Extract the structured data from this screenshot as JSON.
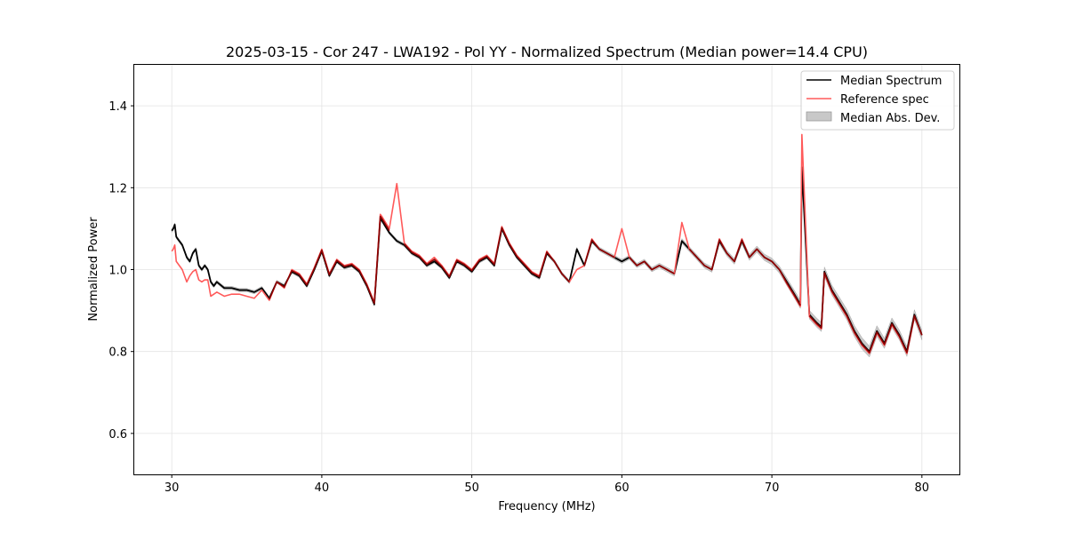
{
  "chart_data": {
    "type": "line",
    "title": "2025-03-15 - Cor 247 - LWA192 - Pol YY - Normalized Spectrum (Median power=14.4 CPU)",
    "xlabel": "Frequency (MHz)",
    "ylabel": "Normalized Power",
    "xlim": [
      27.5,
      82.5
    ],
    "ylim": [
      0.5,
      1.5
    ],
    "xticks": [
      30,
      40,
      50,
      60,
      70,
      80
    ],
    "yticks": [
      0.6,
      0.8,
      1.0,
      1.2,
      1.4
    ],
    "xtick_labels": [
      "30",
      "40",
      "50",
      "60",
      "70",
      "80"
    ],
    "ytick_labels": [
      "0.6",
      "0.8",
      "1.0",
      "1.2",
      "1.4"
    ],
    "grid": true,
    "legend_position": "top-right",
    "legend": [
      "Median Spectrum",
      "Reference spec",
      "Median Abs. Dev."
    ],
    "colors": {
      "median": "#000000",
      "reference": "#ff5a5a",
      "overlap": "#8b0000",
      "mad": "#c8c8c8"
    },
    "series": [
      {
        "name": "Median Spectrum",
        "x": [
          30.0,
          30.1,
          30.2,
          30.3,
          30.5,
          30.7,
          30.9,
          31.0,
          31.2,
          31.4,
          31.6,
          31.8,
          32.0,
          32.2,
          32.4,
          32.6,
          32.8,
          33.0,
          33.5,
          34.0,
          34.5,
          35.0,
          35.5,
          36.0,
          36.5,
          37.0,
          37.5,
          38.0,
          38.5,
          39.0,
          39.5,
          40.0,
          40.5,
          41.0,
          41.5,
          42.0,
          42.5,
          43.0,
          43.5,
          43.9,
          44.0,
          44.5,
          45.0,
          45.5,
          46.0,
          46.5,
          47.0,
          47.5,
          48.0,
          48.5,
          49.0,
          49.5,
          50.0,
          50.5,
          51.0,
          51.5,
          52.0,
          52.5,
          53.0,
          53.5,
          54.0,
          54.5,
          55.0,
          55.5,
          56.0,
          56.5,
          57.0,
          57.5,
          58.0,
          58.5,
          59.0,
          59.5,
          60.0,
          60.5,
          61.0,
          61.5,
          62.0,
          62.5,
          63.0,
          63.5,
          64.0,
          64.5,
          65.0,
          65.5,
          66.0,
          66.5,
          67.0,
          67.5,
          68.0,
          68.5,
          69.0,
          69.5,
          70.0,
          70.5,
          71.0,
          71.5,
          71.9,
          72.0,
          72.5,
          73.0,
          73.3,
          73.5,
          74.0,
          74.5,
          75.0,
          75.5,
          76.0,
          76.5,
          77.0,
          77.5,
          78.0,
          78.5,
          79.0,
          79.5,
          80.0
        ],
        "values": [
          1.095,
          1.1,
          1.11,
          1.08,
          1.07,
          1.06,
          1.04,
          1.03,
          1.02,
          1.04,
          1.05,
          1.01,
          1.0,
          1.01,
          1.0,
          0.97,
          0.96,
          0.97,
          0.955,
          0.955,
          0.95,
          0.95,
          0.945,
          0.955,
          0.93,
          0.97,
          0.96,
          0.995,
          0.985,
          0.96,
          1.0,
          1.045,
          0.985,
          1.02,
          1.005,
          1.01,
          0.995,
          0.96,
          0.915,
          1.125,
          1.12,
          1.09,
          1.07,
          1.06,
          1.04,
          1.03,
          1.01,
          1.02,
          1.005,
          0.98,
          1.02,
          1.01,
          0.995,
          1.02,
          1.03,
          1.01,
          1.1,
          1.06,
          1.03,
          1.01,
          0.99,
          0.98,
          1.04,
          1.02,
          0.99,
          0.97,
          1.05,
          1.01,
          1.07,
          1.05,
          1.04,
          1.03,
          1.02,
          1.03,
          1.01,
          1.02,
          1.0,
          1.01,
          1.0,
          0.99,
          1.07,
          1.05,
          1.03,
          1.01,
          1.0,
          1.07,
          1.04,
          1.02,
          1.07,
          1.03,
          1.05,
          1.03,
          1.02,
          1.0,
          0.97,
          0.94,
          0.915,
          1.25,
          0.89,
          0.87,
          0.86,
          0.995,
          0.95,
          0.92,
          0.89,
          0.85,
          0.82,
          0.8,
          0.85,
          0.82,
          0.87,
          0.84,
          0.8,
          0.89,
          0.84
        ],
        "color": "#000000"
      },
      {
        "name": "Reference spec",
        "x": [
          30.0,
          30.1,
          30.2,
          30.3,
          30.5,
          30.7,
          30.9,
          31.0,
          31.2,
          31.4,
          31.6,
          31.8,
          32.0,
          32.2,
          32.4,
          32.6,
          32.8,
          33.0,
          33.5,
          34.0,
          34.5,
          35.0,
          35.5,
          36.0,
          36.5,
          37.0,
          37.5,
          38.0,
          38.5,
          39.0,
          39.5,
          40.0,
          40.5,
          41.0,
          41.5,
          42.0,
          42.5,
          43.0,
          43.5,
          43.9,
          44.0,
          44.5,
          45.0,
          45.5,
          46.0,
          46.5,
          47.0,
          47.5,
          48.0,
          48.5,
          49.0,
          49.5,
          50.0,
          50.5,
          51.0,
          51.5,
          52.0,
          52.5,
          53.0,
          53.5,
          54.0,
          54.5,
          55.0,
          55.5,
          56.0,
          56.5,
          57.0,
          57.5,
          58.0,
          58.5,
          59.0,
          59.5,
          60.0,
          60.5,
          61.0,
          61.5,
          62.0,
          62.5,
          63.0,
          63.5,
          64.0,
          64.5,
          65.0,
          65.5,
          66.0,
          66.5,
          67.0,
          67.5,
          68.0,
          68.5,
          69.0,
          69.5,
          70.0,
          70.5,
          71.0,
          71.5,
          71.9,
          72.0,
          72.5,
          73.0,
          73.3,
          73.5,
          74.0,
          74.5,
          75.0,
          75.5,
          76.0,
          76.5,
          77.0,
          77.5,
          78.0,
          78.5,
          79.0,
          79.5,
          80.0
        ],
        "values": [
          1.045,
          1.05,
          1.06,
          1.02,
          1.01,
          1.0,
          0.98,
          0.97,
          0.985,
          0.995,
          1.0,
          0.975,
          0.97,
          0.975,
          0.975,
          0.935,
          0.94,
          0.945,
          0.935,
          0.94,
          0.94,
          0.935,
          0.93,
          0.95,
          0.925,
          0.97,
          0.955,
          1.0,
          0.99,
          0.965,
          1.005,
          1.05,
          0.99,
          1.025,
          1.01,
          1.015,
          1.0,
          0.965,
          0.92,
          1.135,
          1.13,
          1.1,
          1.21,
          1.065,
          1.045,
          1.035,
          1.015,
          1.03,
          1.01,
          0.985,
          1.025,
          1.015,
          1.0,
          1.025,
          1.035,
          1.015,
          1.105,
          1.065,
          1.035,
          1.015,
          0.995,
          0.985,
          1.045,
          1.02,
          0.99,
          0.97,
          1.0,
          1.01,
          1.075,
          1.05,
          1.04,
          1.03,
          1.1,
          1.03,
          1.01,
          1.02,
          1.0,
          1.01,
          1.0,
          0.99,
          1.115,
          1.05,
          1.03,
          1.01,
          1.0,
          1.075,
          1.04,
          1.02,
          1.075,
          1.03,
          1.05,
          1.03,
          1.02,
          1.0,
          0.965,
          0.935,
          0.91,
          1.33,
          0.885,
          0.865,
          0.855,
          0.99,
          0.945,
          0.915,
          0.885,
          0.845,
          0.815,
          0.795,
          0.845,
          0.815,
          0.865,
          0.835,
          0.795,
          0.885,
          0.84
        ],
        "color": "#ff5a5a"
      }
    ],
    "mad_band": {
      "name": "Median Abs. Dev.",
      "x": [
        30.0,
        35.0,
        40.0,
        45.0,
        50.0,
        55.0,
        60.0,
        65.0,
        70.0,
        72.0,
        74.0,
        76.0,
        78.0,
        80.0
      ],
      "halfwidth": [
        0.004,
        0.004,
        0.004,
        0.004,
        0.004,
        0.004,
        0.005,
        0.006,
        0.008,
        0.01,
        0.012,
        0.014,
        0.012,
        0.012
      ]
    }
  }
}
